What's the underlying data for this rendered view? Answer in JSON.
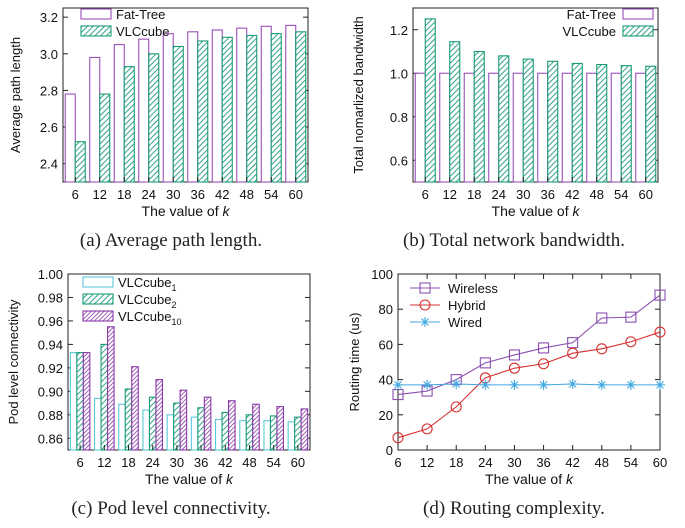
{
  "colors": {
    "fat_tree": "#9b4fb8",
    "vlc": "#1a9a78",
    "vlc1": "#5bc8d8",
    "vlc2": "#1a9a78",
    "vlc10": "#8a3aa8",
    "wireless": "#8a4fb0",
    "hybrid": "#d83030",
    "wired": "#40a8e0"
  },
  "chart_data": [
    {
      "id": "a",
      "type": "bar",
      "caption": "(a) Average path length.",
      "xlabel": "The value of k",
      "ylabel": "Average path length",
      "categories": [
        "6",
        "12",
        "18",
        "24",
        "30",
        "36",
        "42",
        "48",
        "54",
        "60"
      ],
      "ylim": [
        2.3,
        3.25
      ],
      "yticks": [
        2.4,
        2.6,
        2.8,
        3.0,
        3.2
      ],
      "yfmt": 1,
      "legend": "top-left",
      "series": [
        {
          "name": "Fat-Tree",
          "style": "hollow",
          "color": "#9b4fb8",
          "values": [
            2.78,
            2.98,
            3.05,
            3.08,
            3.11,
            3.12,
            3.13,
            3.14,
            3.15,
            3.155
          ]
        },
        {
          "name": "VLCcube",
          "style": "hatch",
          "color": "#1a9a78",
          "values": [
            2.52,
            2.78,
            2.93,
            3.0,
            3.04,
            3.07,
            3.09,
            3.1,
            3.11,
            3.12
          ]
        }
      ]
    },
    {
      "id": "b",
      "type": "bar",
      "caption": "(b) Total network bandwidth.",
      "xlabel": "The value of k",
      "ylabel": "Total nomarlized bandwidth",
      "categories": [
        "6",
        "12",
        "18",
        "24",
        "30",
        "36",
        "42",
        "48",
        "54",
        "60"
      ],
      "ylim": [
        0.5,
        1.3
      ],
      "yticks": [
        0.6,
        0.8,
        1.0,
        1.2
      ],
      "yfmt": 1,
      "legend": "top-right",
      "series": [
        {
          "name": "Fat-Tree",
          "style": "hollow",
          "color": "#9b4fb8",
          "values": [
            1.0,
            1.0,
            1.0,
            1.0,
            1.0,
            1.0,
            1.0,
            1.0,
            1.0,
            1.0
          ]
        },
        {
          "name": "VLCcube",
          "style": "hatch",
          "color": "#1a9a78",
          "values": [
            1.25,
            1.145,
            1.1,
            1.08,
            1.065,
            1.055,
            1.045,
            1.04,
            1.035,
            1.032
          ]
        }
      ]
    },
    {
      "id": "c",
      "type": "bar",
      "caption": "(c) Pod level connectivity.",
      "xlabel": "The value of k",
      "ylabel": "Pod level connectivity",
      "categories": [
        "6",
        "12",
        "18",
        "24",
        "30",
        "36",
        "42",
        "48",
        "54",
        "60"
      ],
      "ylim": [
        0.85,
        1.0
      ],
      "yticks": [
        0.86,
        0.88,
        0.9,
        0.92,
        0.94,
        0.96,
        0.98,
        1.0
      ],
      "yfmt": 2,
      "legend": "top-left",
      "series": [
        {
          "name": "VLCcube",
          "sub": "1",
          "style": "hollow",
          "color": "#5bc8d8",
          "values": [
            0.933,
            0.894,
            0.889,
            0.884,
            0.88,
            0.878,
            0.876,
            0.875,
            0.875,
            0.874
          ]
        },
        {
          "name": "VLCcube",
          "sub": "2",
          "style": "hatch",
          "color": "#1a9a78",
          "values": [
            0.933,
            0.94,
            0.902,
            0.895,
            0.89,
            0.886,
            0.882,
            0.88,
            0.879,
            0.878
          ]
        },
        {
          "name": "VLCcube",
          "sub": "10",
          "style": "hatchdense",
          "color": "#8a3aa8",
          "values": [
            0.933,
            0.955,
            0.921,
            0.91,
            0.901,
            0.895,
            0.892,
            0.889,
            0.887,
            0.885
          ]
        }
      ]
    },
    {
      "id": "d",
      "type": "line",
      "caption": "(d) Routing complexity.",
      "xlabel": "The value of k",
      "ylabel": "Routing time (us)",
      "x": [
        6,
        12,
        18,
        24,
        30,
        36,
        42,
        48,
        54,
        60
      ],
      "xlim": [
        6,
        60
      ],
      "ylim": [
        0,
        100
      ],
      "yticks": [
        0,
        20,
        40,
        60,
        80,
        100
      ],
      "xticks": [
        6,
        12,
        18,
        24,
        30,
        36,
        42,
        48,
        54,
        60
      ],
      "legend": "top-left",
      "series": [
        {
          "name": "Wireless",
          "marker": "square",
          "color": "#8a4fb0",
          "values": [
            31.5,
            33.5,
            40,
            49.5,
            54,
            58,
            61,
            75,
            75.5,
            88
          ]
        },
        {
          "name": "Hybrid",
          "marker": "circle",
          "color": "#d83030",
          "values": [
            7,
            12,
            24.5,
            41,
            46.5,
            49,
            55,
            57.5,
            61.5,
            67
          ]
        },
        {
          "name": "Wired",
          "marker": "star",
          "color": "#40a8e0",
          "values": [
            37,
            37,
            37.5,
            37,
            37,
            37,
            37.5,
            37,
            37,
            37
          ]
        }
      ]
    }
  ]
}
